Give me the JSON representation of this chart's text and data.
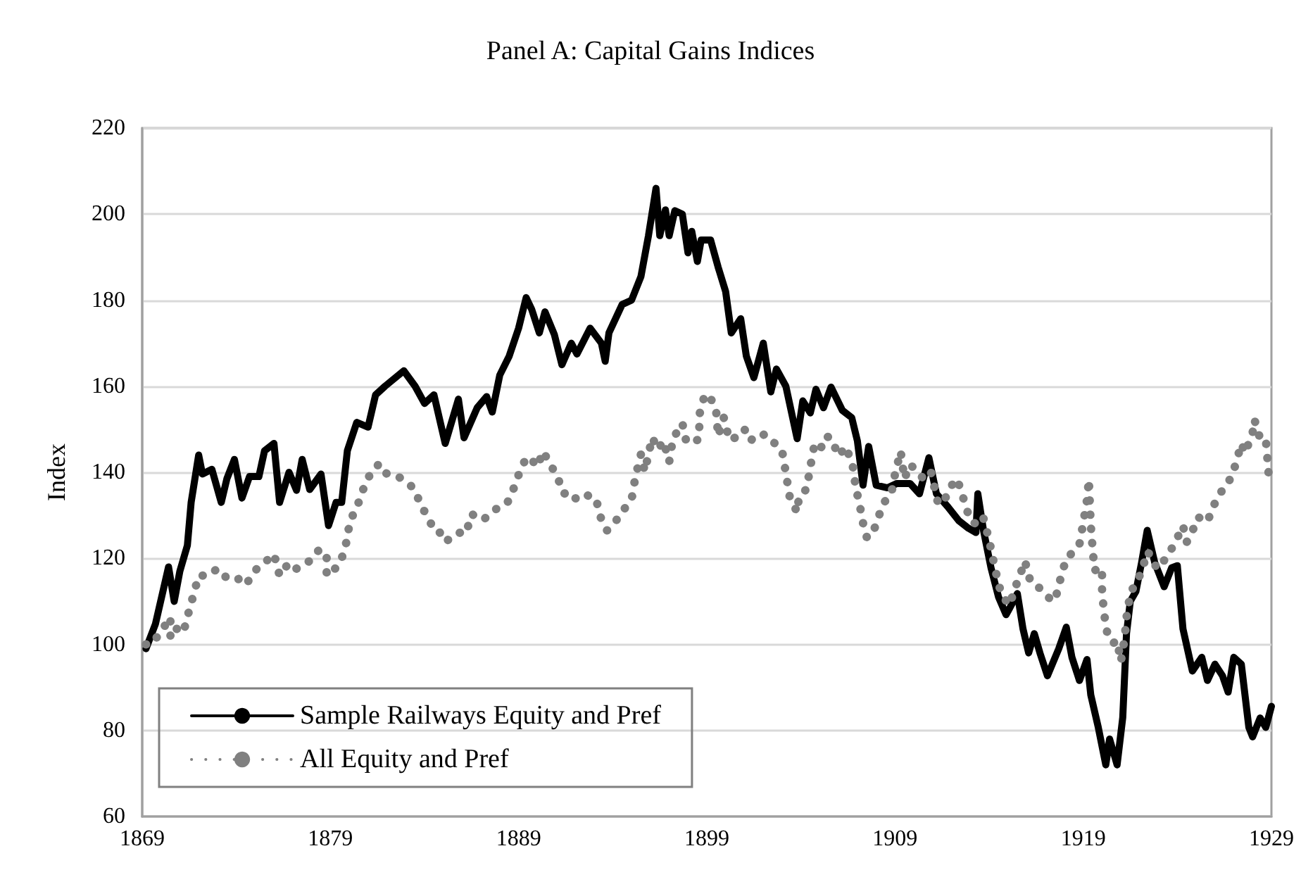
{
  "chart_data": {
    "type": "line",
    "title": "Panel A: Capital Gains Indices",
    "ylabel": "Index",
    "xlim": [
      1869,
      1929
    ],
    "xticks": [
      1869,
      1879,
      1889,
      1899,
      1909,
      1919,
      1929
    ],
    "ylim": [
      60,
      220
    ],
    "yticks": [
      60,
      80,
      100,
      120,
      140,
      160,
      180,
      200,
      220
    ],
    "grid": "y",
    "legend": "bottom left",
    "marker": "none",
    "series": [
      {
        "name": "Sample Railways Equity and Pref",
        "color": "#000000",
        "line_style": "solid",
        "x": [
          1869.2,
          1869.7,
          1870.4,
          1870.7,
          1871.0,
          1871.4,
          1871.6,
          1872.0,
          1872.2,
          1872.7,
          1873.2,
          1873.5,
          1873.9,
          1874.3,
          1874.7,
          1875.2,
          1875.5,
          1876.0,
          1876.3,
          1876.8,
          1877.2,
          1877.5,
          1877.9,
          1878.5,
          1878.9,
          1879.3,
          1879.6,
          1879.9,
          1880.4,
          1881.0,
          1881.4,
          1881.9,
          1882.9,
          1883.5,
          1884.0,
          1884.5,
          1885.1,
          1885.8,
          1886.1,
          1886.8,
          1887.3,
          1887.6,
          1888.0,
          1888.5,
          1889.0,
          1889.4,
          1889.7,
          1890.1,
          1890.4,
          1890.9,
          1891.3,
          1891.8,
          1892.1,
          1892.8,
          1893.4,
          1893.6,
          1893.8,
          1894.5,
          1895.0,
          1895.5,
          1895.9,
          1896.3,
          1896.5,
          1896.8,
          1897.0,
          1897.3,
          1897.7,
          1898.0,
          1898.2,
          1898.5,
          1898.7,
          1899.2,
          1899.6,
          1900.0,
          1900.3,
          1900.8,
          1901.1,
          1901.5,
          1902.0,
          1902.4,
          1902.7,
          1903.2,
          1903.8,
          1904.1,
          1904.5,
          1904.8,
          1905.2,
          1905.6,
          1906.2,
          1906.7,
          1907.0,
          1907.3,
          1907.6,
          1908.0,
          1908.6,
          1909.1,
          1909.8,
          1910.3,
          1910.8,
          1911.2,
          1911.8,
          1912.4,
          1912.9,
          1913.3,
          1913.4,
          1913.7,
          1914.1,
          1914.5,
          1914.9,
          1915.1,
          1915.5,
          1915.8,
          1916.1,
          1916.4,
          1916.7,
          1917.1,
          1917.7,
          1918.1,
          1918.4,
          1918.8,
          1919.2,
          1919.4,
          1919.8,
          1920.2,
          1920.4,
          1920.8,
          1921.1,
          1921.3,
          1921.5,
          1921.8,
          1922.1,
          1922.4,
          1922.8,
          1923.3,
          1923.7,
          1924.0,
          1924.3,
          1924.8,
          1925.3,
          1925.6,
          1926.0,
          1926.4,
          1926.7,
          1927.0,
          1927.4,
          1927.8,
          1928.0,
          1928.4,
          1928.7,
          1929.0
        ],
        "values": [
          99,
          104.7,
          118,
          110,
          117,
          123,
          133,
          144,
          139.6,
          140.7,
          133,
          138.5,
          143,
          134,
          139,
          139,
          145,
          146.7,
          133,
          140,
          135.8,
          143,
          136,
          139.6,
          127.6,
          133,
          133,
          145,
          151.6,
          150.5,
          158,
          160,
          163.6,
          160,
          156,
          158,
          146.7,
          157,
          148,
          155,
          157.6,
          154,
          162.6,
          167,
          173.5,
          180.6,
          177.8,
          172.4,
          177.3,
          172,
          165,
          170,
          167.5,
          173.5,
          170,
          165.8,
          172.4,
          179,
          180,
          185.5,
          195,
          206,
          195,
          201,
          195,
          200.8,
          200,
          191,
          196,
          189,
          194,
          194,
          187.7,
          182,
          172.4,
          175.7,
          167,
          162,
          170,
          158.7,
          164,
          160,
          147.8,
          156.6,
          153.8,
          159.3,
          155,
          159.8,
          154.4,
          152.7,
          147.3,
          137,
          146,
          137,
          136.4,
          137.4,
          137.4,
          135,
          143.4,
          135,
          132,
          128.7,
          127,
          126,
          135,
          126.5,
          117.8,
          111,
          106.9,
          108.5,
          111.8,
          103.6,
          98,
          102.5,
          98,
          92.7,
          99,
          104,
          97,
          91.6,
          96.5,
          88.3,
          80.7,
          72,
          78,
          72,
          83,
          102.5,
          110,
          112.3,
          119,
          126.5,
          119,
          113.4,
          117.8,
          118.3,
          103.6,
          93.8,
          97,
          91.6,
          95.4,
          92.7,
          88.9,
          97,
          95.4,
          80.7,
          78.5,
          82.9,
          80.7,
          85.6
        ]
      },
      {
        "name": "All Equity and Pref",
        "color": "#808080",
        "line_style": "dotted",
        "x": [
          1869.2,
          1869.5,
          1870.0,
          1870.5,
          1870.5,
          1870.9,
          1871.2,
          1871.5,
          1871.8,
          1872.0,
          1872.5,
          1873.0,
          1873.5,
          1874.0,
          1874.5,
          1875.0,
          1875.5,
          1876.0,
          1876.3,
          1876.8,
          1877.2,
          1877.9,
          1878.4,
          1878.8,
          1878.8,
          1879.3,
          1879.5,
          1879.8,
          1880.0,
          1880.3,
          1880.5,
          1880.9,
          1881.3,
          1881.6,
          1882.0,
          1882.4,
          1882.8,
          1883.4,
          1883.9,
          1884.4,
          1884.6,
          1885.1,
          1885.8,
          1886.2,
          1886.5,
          1887.1,
          1887.5,
          1887.9,
          1888.4,
          1888.7,
          1889.0,
          1889.4,
          1889.6,
          1890.0,
          1890.3,
          1890.7,
          1891.0,
          1891.4,
          1891.7,
          1892.1,
          1892.6,
          1893.1,
          1893.4,
          1893.7,
          1894.2,
          1894.6,
          1895.0,
          1895.2,
          1895.5,
          1895.7,
          1896.1,
          1896.4,
          1896.7,
          1897.0,
          1897.2,
          1897.7,
          1897.9,
          1898.2,
          1898.6,
          1898.6,
          1898.9,
          1899.3,
          1899.5,
          1899.6,
          1899.9,
          1900.2,
          1900.7,
          1901.0,
          1901.3,
          1901.8,
          1902.3,
          1902.7,
          1903.0,
          1903.2,
          1903.4,
          1903.8,
          1903.9,
          1904.3,
          1904.5,
          1904.7,
          1905.0,
          1905.3,
          1905.6,
          1906.0,
          1906.4,
          1906.8,
          1906.9,
          1907.1,
          1907.3,
          1907.5,
          1907.8,
          1908.0,
          1908.4,
          1908.8,
          1909.0,
          1909.3,
          1909.5,
          1909.8,
          1910.2,
          1910.5,
          1910.9,
          1911.3,
          1911.7,
          1912.0,
          1912.3,
          1912.7,
          1913.0,
          1913.5,
          1913.7,
          1914.0,
          1914.2,
          1914.5,
          1914.7,
          1915.1,
          1915.3,
          1915.6,
          1915.9,
          1916.2,
          1916.6,
          1917.0,
          1917.3,
          1917.5,
          1917.8,
          1918.1,
          1918.5,
          1918.8,
          1919.0,
          1919.2,
          1919.3,
          1919.4,
          1919.5,
          1919.6,
          1920.0,
          1920.0,
          1920.1,
          1920.3,
          1920.6,
          1920.8,
          1921.0,
          1921.2,
          1921.3,
          1921.5,
          1921.8,
          1922.1,
          1922.4,
          1922.7,
          1922.9,
          1923.4,
          1923.9,
          1924.3,
          1924.5,
          1924.8,
          1925.1,
          1925.6,
          1925.9,
          1926.3,
          1926.7,
          1927.1,
          1927.4,
          1927.6,
          1928.0,
          1928.1,
          1928.4,
          1928.7,
          1928.8,
          1928.9
        ],
        "values": [
          100,
          100,
          103,
          106.3,
          101.4,
          104,
          103,
          108,
          112.7,
          116,
          116,
          117.6,
          115.4,
          115.6,
          113.8,
          117.2,
          119,
          121,
          116,
          119,
          117.6,
          119.4,
          122,
          121,
          116,
          117.8,
          118.7,
          122.7,
          127.6,
          131.4,
          133,
          138,
          140.7,
          142,
          139.6,
          139.4,
          138.5,
          136.4,
          131.7,
          127.6,
          127.6,
          123.8,
          126,
          125.7,
          130.3,
          128.9,
          130.3,
          131.8,
          132.9,
          135.8,
          139.4,
          143.4,
          143.4,
          141.3,
          144.9,
          141.6,
          139.6,
          135,
          135.5,
          133.6,
          134.7,
          134,
          128.9,
          126.5,
          128.9,
          131.4,
          133.6,
          138.8,
          144.2,
          140.2,
          148.1,
          145.3,
          147.3,
          142.4,
          147.8,
          151.4,
          147.3,
          146.7,
          147.8,
          153.3,
          158.2,
          156.6,
          154,
          148.4,
          152.7,
          147.5,
          148.4,
          150,
          147.3,
          149,
          148.4,
          146.2,
          145,
          139.8,
          134.4,
          130.7,
          134.4,
          136.1,
          141.3,
          146,
          144.9,
          148.4,
          148,
          143.8,
          146,
          140.7,
          136.6,
          133,
          128.2,
          124.9,
          125.4,
          128.2,
          132.9,
          135,
          139.6,
          144.9,
          138.5,
          141.8,
          140.2,
          138.5,
          140.2,
          132.5,
          134.2,
          136.9,
          138.5,
          133,
          128.7,
          127.6,
          129.3,
          124.3,
          120,
          114,
          111.2,
          109.1,
          112.3,
          115.6,
          119.4,
          114.5,
          113.4,
          111.8,
          110.2,
          110.2,
          115.4,
          120,
          121.6,
          123.3,
          128.2,
          133.6,
          138.3,
          127.8,
          122.2,
          117.2,
          117.8,
          112.6,
          107.4,
          102,
          100.3,
          100.9,
          96,
          101.4,
          106.3,
          111.8,
          114.5,
          116.7,
          121.6,
          120,
          117.6,
          120,
          123.8,
          127.6,
          123.8,
          126.3,
          129.6,
          128.5,
          132,
          135.3,
          137.4,
          141.8,
          146.7,
          144.5,
          149.2,
          152.2,
          147.8,
          147.8,
          142.4,
          136.9
        ]
      }
    ]
  }
}
